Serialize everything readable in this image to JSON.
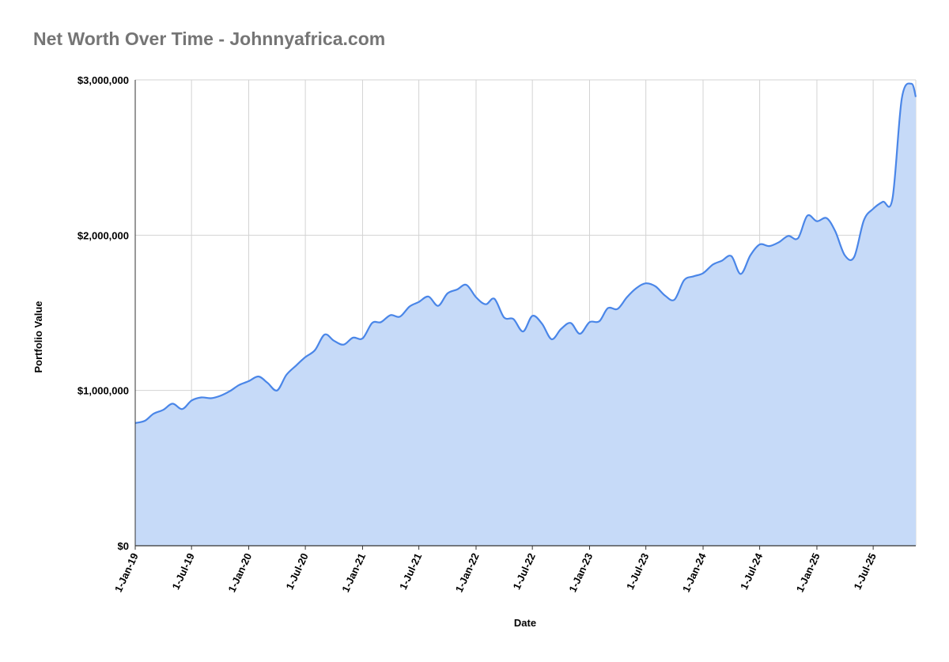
{
  "chart_data": {
    "type": "area",
    "title": "Net Worth Over Time - Johnnyafrica.com",
    "xlabel": "Date",
    "ylabel": "Portfolio Value",
    "ylim": [
      0,
      3000000
    ],
    "y_ticks": [
      0,
      1000000,
      2000000,
      3000000
    ],
    "y_tick_labels": [
      "$0",
      "$1,000,000",
      "$2,000,000",
      "$3,000,000"
    ],
    "x_range": [
      "2019-01-01",
      "2025-11-15"
    ],
    "x_ticks": [
      "2019-01-01",
      "2019-07-01",
      "2020-01-01",
      "2020-07-01",
      "2021-01-01",
      "2021-07-01",
      "2022-01-01",
      "2022-07-01",
      "2023-01-01",
      "2023-07-01",
      "2024-01-01",
      "2024-07-01",
      "2025-01-01",
      "2025-07-01"
    ],
    "x_tick_labels": [
      "1-Jan-19",
      "1-Jul-19",
      "1-Jan-20",
      "1-Jul-20",
      "1-Jan-21",
      "1-Jul-21",
      "1-Jan-22",
      "1-Jul-22",
      "1-Jan-23",
      "1-Jul-23",
      "1-Jan-24",
      "1-Jul-24",
      "1-Jan-25",
      "1-Jul-25"
    ],
    "grid": true,
    "legend": "none",
    "colors": {
      "line": "#4a86e8",
      "fill": "#c6daf8",
      "grid": "#d3d3d3"
    },
    "series": [
      {
        "x": [
          "2019-01-01",
          "2019-02-01",
          "2019-03-01",
          "2019-04-01",
          "2019-05-01",
          "2019-06-01",
          "2019-07-01",
          "2019-08-01",
          "2019-09-01",
          "2019-10-01",
          "2019-11-01",
          "2019-12-01",
          "2020-01-01",
          "2020-02-01",
          "2020-03-01",
          "2020-04-01",
          "2020-05-01",
          "2020-06-01",
          "2020-07-01",
          "2020-08-01",
          "2020-09-01",
          "2020-10-01",
          "2020-11-01",
          "2020-12-01",
          "2021-01-01",
          "2021-02-01",
          "2021-03-01",
          "2021-04-01",
          "2021-05-01",
          "2021-06-01",
          "2021-07-01",
          "2021-08-01",
          "2021-09-01",
          "2021-10-01",
          "2021-11-01",
          "2021-12-01",
          "2022-01-01",
          "2022-02-01",
          "2022-03-01",
          "2022-04-01",
          "2022-05-01",
          "2022-06-01",
          "2022-07-01",
          "2022-08-01",
          "2022-09-01",
          "2022-10-01",
          "2022-11-01",
          "2022-12-01",
          "2023-01-01",
          "2023-02-01",
          "2023-03-01",
          "2023-04-01",
          "2023-05-01",
          "2023-06-01",
          "2023-07-01",
          "2023-08-01",
          "2023-09-01",
          "2023-10-01",
          "2023-11-01",
          "2023-12-01",
          "2024-01-01",
          "2024-02-01",
          "2024-03-01",
          "2024-04-01",
          "2024-05-01",
          "2024-06-01",
          "2024-07-01",
          "2024-08-01",
          "2024-09-01",
          "2024-10-01",
          "2024-11-01",
          "2024-12-01",
          "2025-01-01",
          "2025-02-01",
          "2025-03-01",
          "2025-04-01",
          "2025-05-01",
          "2025-06-01",
          "2025-07-01",
          "2025-08-01",
          "2025-09-01",
          "2025-10-01",
          "2025-11-01",
          "2025-11-15"
        ],
        "values": [
          790000,
          805000,
          850000,
          875000,
          915000,
          880000,
          935000,
          955000,
          950000,
          965000,
          995000,
          1035000,
          1060000,
          1090000,
          1050000,
          1000000,
          1100000,
          1160000,
          1215000,
          1260000,
          1360000,
          1320000,
          1295000,
          1340000,
          1335000,
          1435000,
          1440000,
          1485000,
          1475000,
          1540000,
          1570000,
          1605000,
          1545000,
          1625000,
          1650000,
          1680000,
          1600000,
          1555000,
          1590000,
          1470000,
          1460000,
          1380000,
          1480000,
          1430000,
          1330000,
          1395000,
          1435000,
          1365000,
          1440000,
          1445000,
          1530000,
          1525000,
          1600000,
          1660000,
          1690000,
          1670000,
          1610000,
          1585000,
          1710000,
          1735000,
          1755000,
          1810000,
          1835000,
          1865000,
          1750000,
          1870000,
          1940000,
          1930000,
          1955000,
          1995000,
          1980000,
          2125000,
          2090000,
          2110000,
          2025000,
          1870000,
          1860000,
          2095000,
          2170000,
          2215000,
          2235000,
          2880000,
          2975000,
          2890000
        ]
      }
    ]
  }
}
